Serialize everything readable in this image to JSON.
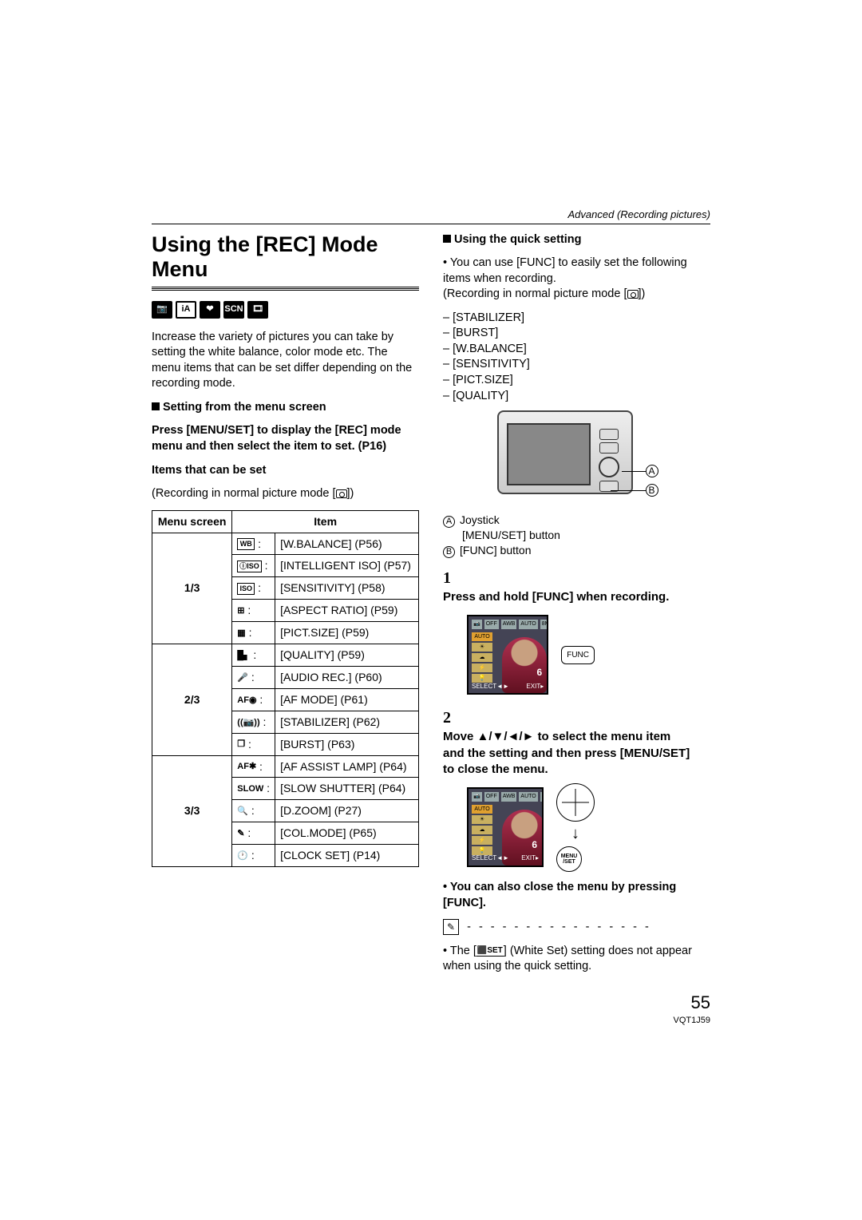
{
  "header": {
    "section": "Advanced (Recording pictures)"
  },
  "title": "Using the [REC] Mode Menu",
  "mode_icons": [
    "📷",
    "iA",
    "❤",
    "SCN",
    "🎞"
  ],
  "intro": "Increase the variety of pictures you can take by setting the white balance, color mode etc. The menu items that can be set differ depending on the recording mode.",
  "left": {
    "subhead": "Setting from the menu screen",
    "instruction": "Press [MENU/SET] to display the [REC] mode menu and then select the item to set. (P16)",
    "items_heading": "Items that can be set",
    "items_note": "(Recording in normal picture mode [",
    "items_note_after": "])",
    "table": {
      "col1": "Menu screen",
      "col2": "Item",
      "groups": [
        {
          "screen": "1/3",
          "rows": [
            {
              "icon": "WB",
              "label": "[W.BALANCE] (P56)"
            },
            {
              "icon": "ⓘISO",
              "label": "[INTELLIGENT ISO] (P57)"
            },
            {
              "icon": "ISO",
              "label": "[SENSITIVITY] (P58)"
            },
            {
              "icon": "⊞",
              "label": "[ASPECT RATIO] (P59)"
            },
            {
              "icon": "▦",
              "label": "[PICT.SIZE] (P59)"
            }
          ]
        },
        {
          "screen": "2/3",
          "rows": [
            {
              "icon": "█▖",
              "label": "[QUALITY] (P59)"
            },
            {
              "icon": "🎤",
              "label": "[AUDIO REC.] (P60)"
            },
            {
              "icon": "AF◉",
              "label": "[AF MODE] (P61)"
            },
            {
              "icon": "((📷))",
              "label": "[STABILIZER] (P62)"
            },
            {
              "icon": "❐",
              "label": "[BURST] (P63)"
            }
          ]
        },
        {
          "screen": "3/3",
          "rows": [
            {
              "icon": "AF✱",
              "label": "[AF ASSIST LAMP] (P64)"
            },
            {
              "icon": "SLOW",
              "label": "[SLOW SHUTTER] (P64)"
            },
            {
              "icon": "🔍",
              "label": "[D.ZOOM] (P27)"
            },
            {
              "icon": "✎",
              "label": "[COL.MODE] (P65)"
            },
            {
              "icon": "🕐",
              "label": "[CLOCK SET] (P14)"
            }
          ]
        }
      ]
    }
  },
  "right": {
    "subhead": "Using the quick setting",
    "quick_intro": "You can use [FUNC] to easily set the following items when recording.",
    "quick_note": "(Recording in normal picture mode [",
    "quick_note_after": "])",
    "quick_items": [
      "[STABILIZER]",
      "[BURST]",
      "[W.BALANCE]",
      "[SENSITIVITY]",
      "[PICT.SIZE]",
      "[QUALITY]"
    ],
    "callouts": {
      "A_letter": "A",
      "B_letter": "B",
      "A_label1": "Joystick",
      "A_label2": "[MENU/SET] button",
      "B_label": "[FUNC] button"
    },
    "step1": "Press and hold [FUNC] when recording.",
    "func_label": "FUNC",
    "step2": "Move ▲/▼/◄/► to select the menu item and the setting and then press [MENU/SET] to close the menu.",
    "menu_set": "MENU /SET",
    "close_note": "You can also close the menu by pressing [FUNC].",
    "tip_icon": "✎",
    "tip_text": "The [",
    "tip_wset": "⬛SET",
    "tip_text2": "] (White Set) setting does not appear when using the quick setting.",
    "lcd": {
      "top": [
        "📷",
        "OFF",
        "AWB",
        "AUTO",
        "8M",
        "▦"
      ],
      "side": [
        "AUTO",
        "☀",
        "☁",
        "⚡",
        "💡"
      ],
      "num": "6",
      "bl": "SELECT◄►",
      "br": "EXIT▸"
    }
  },
  "footer": {
    "page": "55",
    "code": "VQT1J59"
  }
}
